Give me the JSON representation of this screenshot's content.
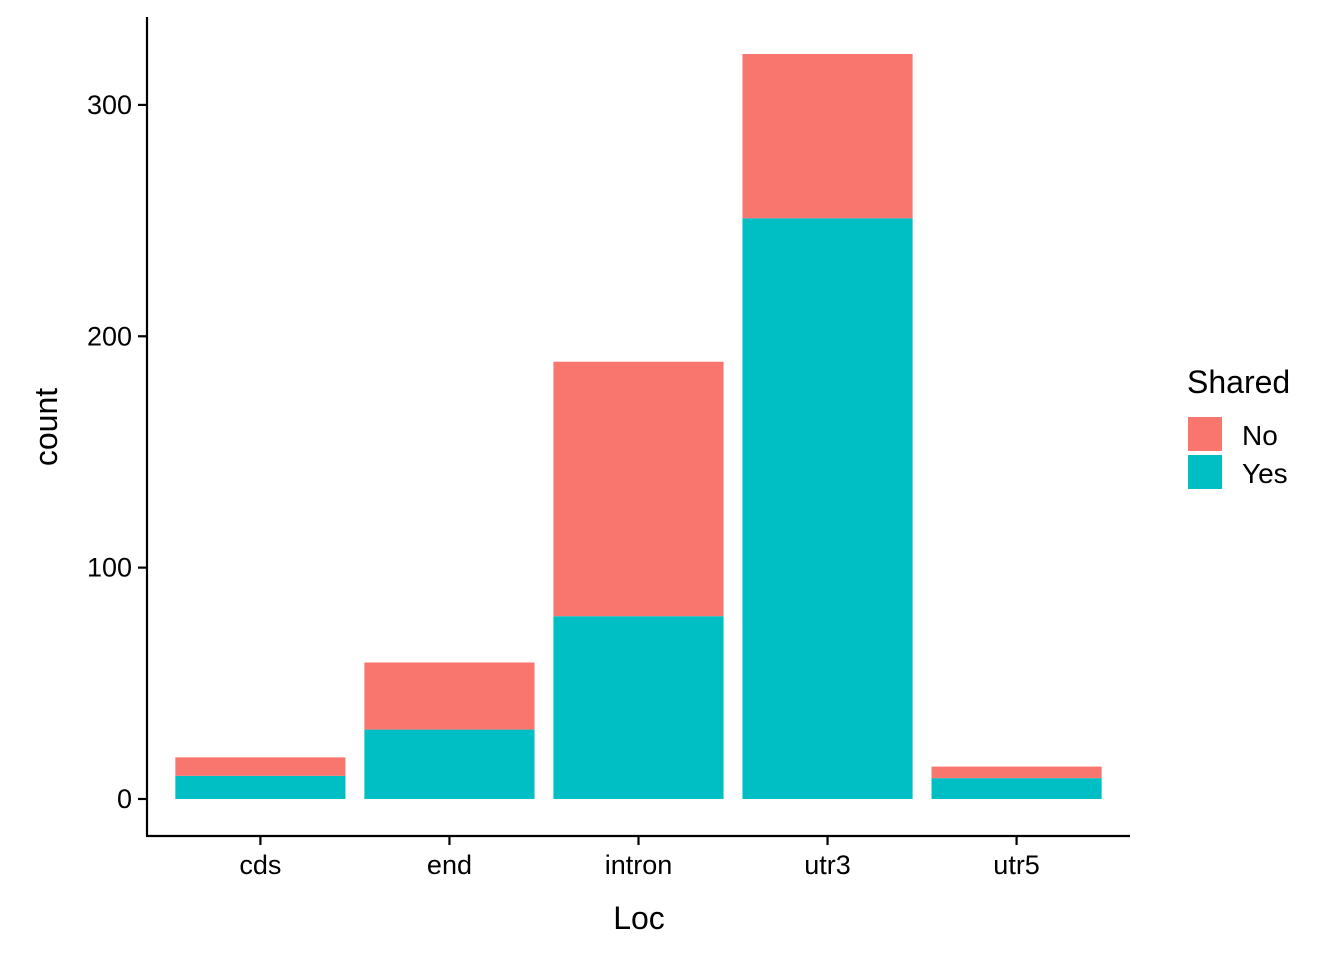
{
  "chart_data": {
    "type": "bar",
    "stacked": true,
    "title": "",
    "xlabel": "Loc",
    "ylabel": "count",
    "categories": [
      "cds",
      "end",
      "intron",
      "utr3",
      "utr5"
    ],
    "series": [
      {
        "name": "Yes",
        "color": "#00BFC4",
        "values": [
          10,
          30,
          79,
          251,
          9
        ]
      },
      {
        "name": "No",
        "color": "#F8766D",
        "values": [
          8,
          29,
          110,
          71,
          5
        ]
      }
    ],
    "ylim": [
      -16,
      338
    ],
    "yticks": [
      0,
      100,
      200,
      300
    ],
    "grid": false,
    "legend": {
      "title": "Shared",
      "position": "right",
      "entries": [
        {
          "label": "No",
          "color": "#F8766D"
        },
        {
          "label": "Yes",
          "color": "#00BFC4"
        }
      ]
    }
  }
}
